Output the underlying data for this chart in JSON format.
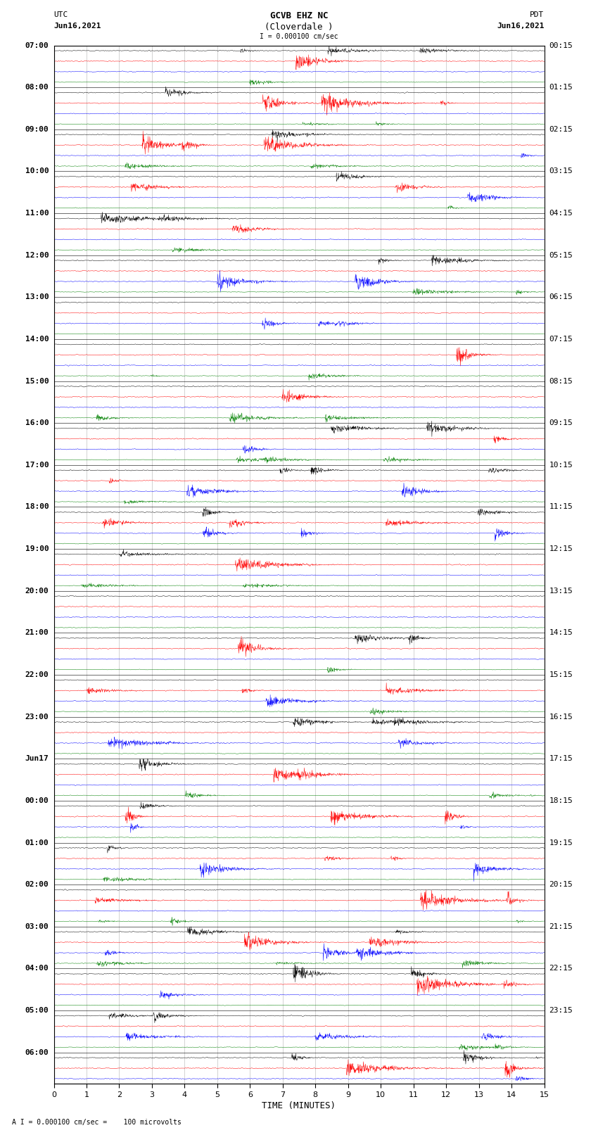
{
  "title_line1": "GCVB EHZ NC",
  "title_line2": "(Cloverdale )",
  "scale_label": "I = 0.000100 cm/sec",
  "footer_label": "A I = 0.000100 cm/sec =    100 microvolts",
  "xlabel": "TIME (MINUTES)",
  "left_label_top": "UTC",
  "left_label_date": "Jun16,2021",
  "right_label_top": "PDT",
  "right_label_date": "Jun16,2021",
  "left_times": [
    "07:00",
    "08:00",
    "09:00",
    "10:00",
    "11:00",
    "12:00",
    "13:00",
    "14:00",
    "15:00",
    "16:00",
    "17:00",
    "18:00",
    "19:00",
    "20:00",
    "21:00",
    "22:00",
    "23:00",
    "Jun17",
    "00:00",
    "01:00",
    "02:00",
    "03:00",
    "04:00",
    "05:00",
    "06:00"
  ],
  "right_times": [
    "00:15",
    "01:15",
    "02:15",
    "03:15",
    "04:15",
    "05:15",
    "06:15",
    "07:15",
    "08:15",
    "09:15",
    "10:15",
    "11:15",
    "12:15",
    "13:15",
    "14:15",
    "15:15",
    "16:15",
    "17:15",
    "18:15",
    "19:15",
    "20:15",
    "21:15",
    "22:15",
    "23:15"
  ],
  "colors": [
    "black",
    "red",
    "blue",
    "green"
  ],
  "n_hours": 24,
  "rows_per_hour": 4,
  "n_cols": 1800,
  "x_min": 0,
  "x_max": 15,
  "background_color": "white",
  "trace_amplitude": 0.08,
  "noise_std": 0.04,
  "font_size": 8,
  "title_font_size": 9
}
